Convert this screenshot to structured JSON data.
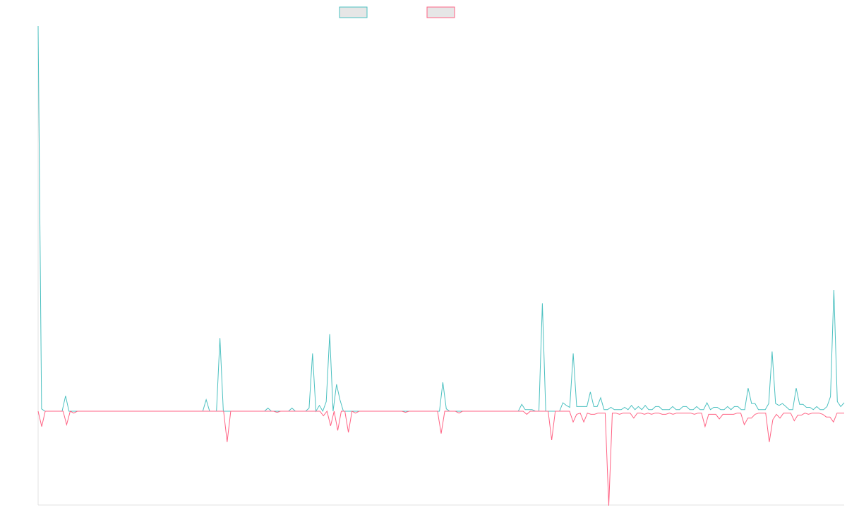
{
  "chart_data": {
    "type": "line",
    "legend_placement": "top-center",
    "grid": false,
    "colors": {
      "series_a": "#4bc0c0",
      "series_b": "#ff6384",
      "legend_fill": "#e6e6e6",
      "axis": "#e0e0e0"
    },
    "series": [
      {
        "label": "",
        "color": "#4bc0c0",
        "values": [
          100,
          0.6,
          0,
          0,
          0,
          0,
          0,
          0,
          4,
          0,
          0,
          0,
          0,
          0,
          0,
          0,
          0,
          0,
          0,
          0,
          0,
          0,
          0,
          0,
          0,
          0,
          0,
          0,
          0,
          0,
          0,
          0,
          0,
          0,
          0,
          0,
          0,
          0,
          0,
          0,
          0,
          0,
          0,
          0,
          0,
          0,
          0,
          0,
          0,
          3,
          0,
          0,
          0,
          19,
          0,
          0,
          0,
          0,
          0,
          0,
          0,
          0,
          0,
          0,
          0,
          0,
          0,
          0.8,
          0,
          0,
          0,
          0,
          0,
          0,
          0.8,
          0,
          0,
          0,
          0,
          0.8,
          15,
          0,
          1.5,
          0,
          2.5,
          20,
          0,
          7,
          3,
          0,
          0,
          0,
          0,
          0,
          0,
          0,
          0,
          0,
          0,
          0,
          0,
          0,
          0,
          0,
          0,
          0,
          0,
          0,
          0,
          0,
          0,
          0,
          0,
          0,
          0,
          0,
          0,
          0,
          7.5,
          0.6,
          0,
          0,
          0,
          0,
          0,
          0,
          0,
          0,
          0,
          0,
          0,
          0,
          0,
          0,
          0,
          0,
          0,
          0,
          0,
          0,
          0,
          1.8,
          0.4,
          0.4,
          0.4,
          0,
          0,
          28,
          0,
          0,
          0,
          0,
          0,
          2.2,
          1.5,
          1,
          15,
          1.2,
          1.2,
          1.2,
          1.2,
          5,
          1.2,
          1.2,
          3.5,
          0.4,
          0.4,
          1,
          0.4,
          0.4,
          0.4,
          1,
          0.4,
          1.5,
          0.4,
          1.2,
          0.4,
          1.5,
          0.4,
          0.4,
          1.2,
          1.2,
          0.4,
          0.4,
          0.4,
          1.2,
          0.4,
          0.4,
          1.2,
          1.2,
          0.4,
          0.4,
          1.2,
          0.4,
          0.4,
          2.2,
          0.4,
          1,
          1,
          0.4,
          0.4,
          1.2,
          0.4,
          1.2,
          1.2,
          0.4,
          0.4,
          6,
          2,
          2,
          0.4,
          0.4,
          0.4,
          2,
          15.5,
          2,
          1.5,
          2,
          1.2,
          0.4,
          0.4,
          6,
          1.8,
          1.8,
          1,
          1,
          0.4,
          1.2,
          0.4,
          0.4,
          1.2,
          3.8,
          31.5,
          2.5,
          1.2,
          2.2
        ]
      },
      {
        "label": "",
        "color": "#ff6384",
        "values": [
          0,
          -4,
          0,
          0,
          0,
          0,
          0,
          0,
          -3.5,
          0,
          -0.5,
          0,
          0,
          0,
          0,
          0,
          0,
          0,
          0,
          0,
          0,
          0,
          0,
          0,
          0,
          0,
          0,
          0,
          0,
          0,
          0,
          0,
          0,
          0,
          0,
          0,
          0,
          0,
          0,
          0,
          0,
          0,
          0,
          0,
          0,
          0,
          0,
          0,
          0,
          0,
          0,
          0,
          0,
          -8,
          0,
          0,
          0,
          0,
          0,
          0,
          0,
          0,
          0,
          0,
          0,
          0,
          0,
          -0.3,
          0,
          0,
          0,
          0,
          0,
          0,
          0,
          0,
          0,
          0,
          0,
          0,
          -1.2,
          0,
          -3.8,
          0,
          -5,
          0,
          0,
          -5.5,
          0,
          -0.5,
          0,
          0,
          0,
          0,
          0,
          0,
          0,
          0,
          0,
          0,
          0,
          0,
          0,
          -0.3,
          0,
          0,
          0,
          0,
          0,
          0,
          0,
          0,
          0,
          -5.8,
          0,
          0,
          0,
          0,
          -0.5,
          0,
          0,
          0,
          0,
          0,
          0,
          0,
          0,
          0,
          0,
          0,
          0,
          0,
          0,
          0,
          0,
          0,
          0,
          -0.8,
          0,
          0,
          0,
          0,
          0,
          0,
          -7.5,
          0,
          0,
          0,
          0,
          0,
          -2.8,
          -0.8,
          -0.5,
          -2.8,
          -0.5,
          -0.8,
          -0.8,
          -0.5,
          -0.5,
          -0.5,
          -24.5,
          -0.5,
          -0.5,
          -0.8,
          -0.5,
          -0.5,
          -0.5,
          -1.8,
          -0.5,
          -0.5,
          -0.8,
          -0.5,
          -0.8,
          -0.5,
          -0.5,
          -0.8,
          -0.8,
          -0.5,
          -0.8,
          -0.5,
          -0.5,
          -0.5,
          -0.5,
          -0.5,
          -0.8,
          -0.5,
          -0.5,
          -4,
          -0.8,
          -0.8,
          -0.8,
          -2,
          -0.8,
          -0.8,
          -0.8,
          -0.8,
          -0.5,
          -0.5,
          -3.5,
          -1.8,
          -1.8,
          -0.8,
          -0.5,
          -0.5,
          -0.5,
          -8,
          -2.2,
          -0.8,
          -1.8,
          -0.5,
          -0.5,
          -0.5,
          -2.5,
          -1,
          -1,
          -0.5,
          -0.8,
          -0.5,
          -0.5,
          -0.5,
          -0.8,
          -1.5,
          -1.5,
          -2.8,
          -0.5,
          -0.5,
          -0.5
        ]
      }
    ]
  }
}
